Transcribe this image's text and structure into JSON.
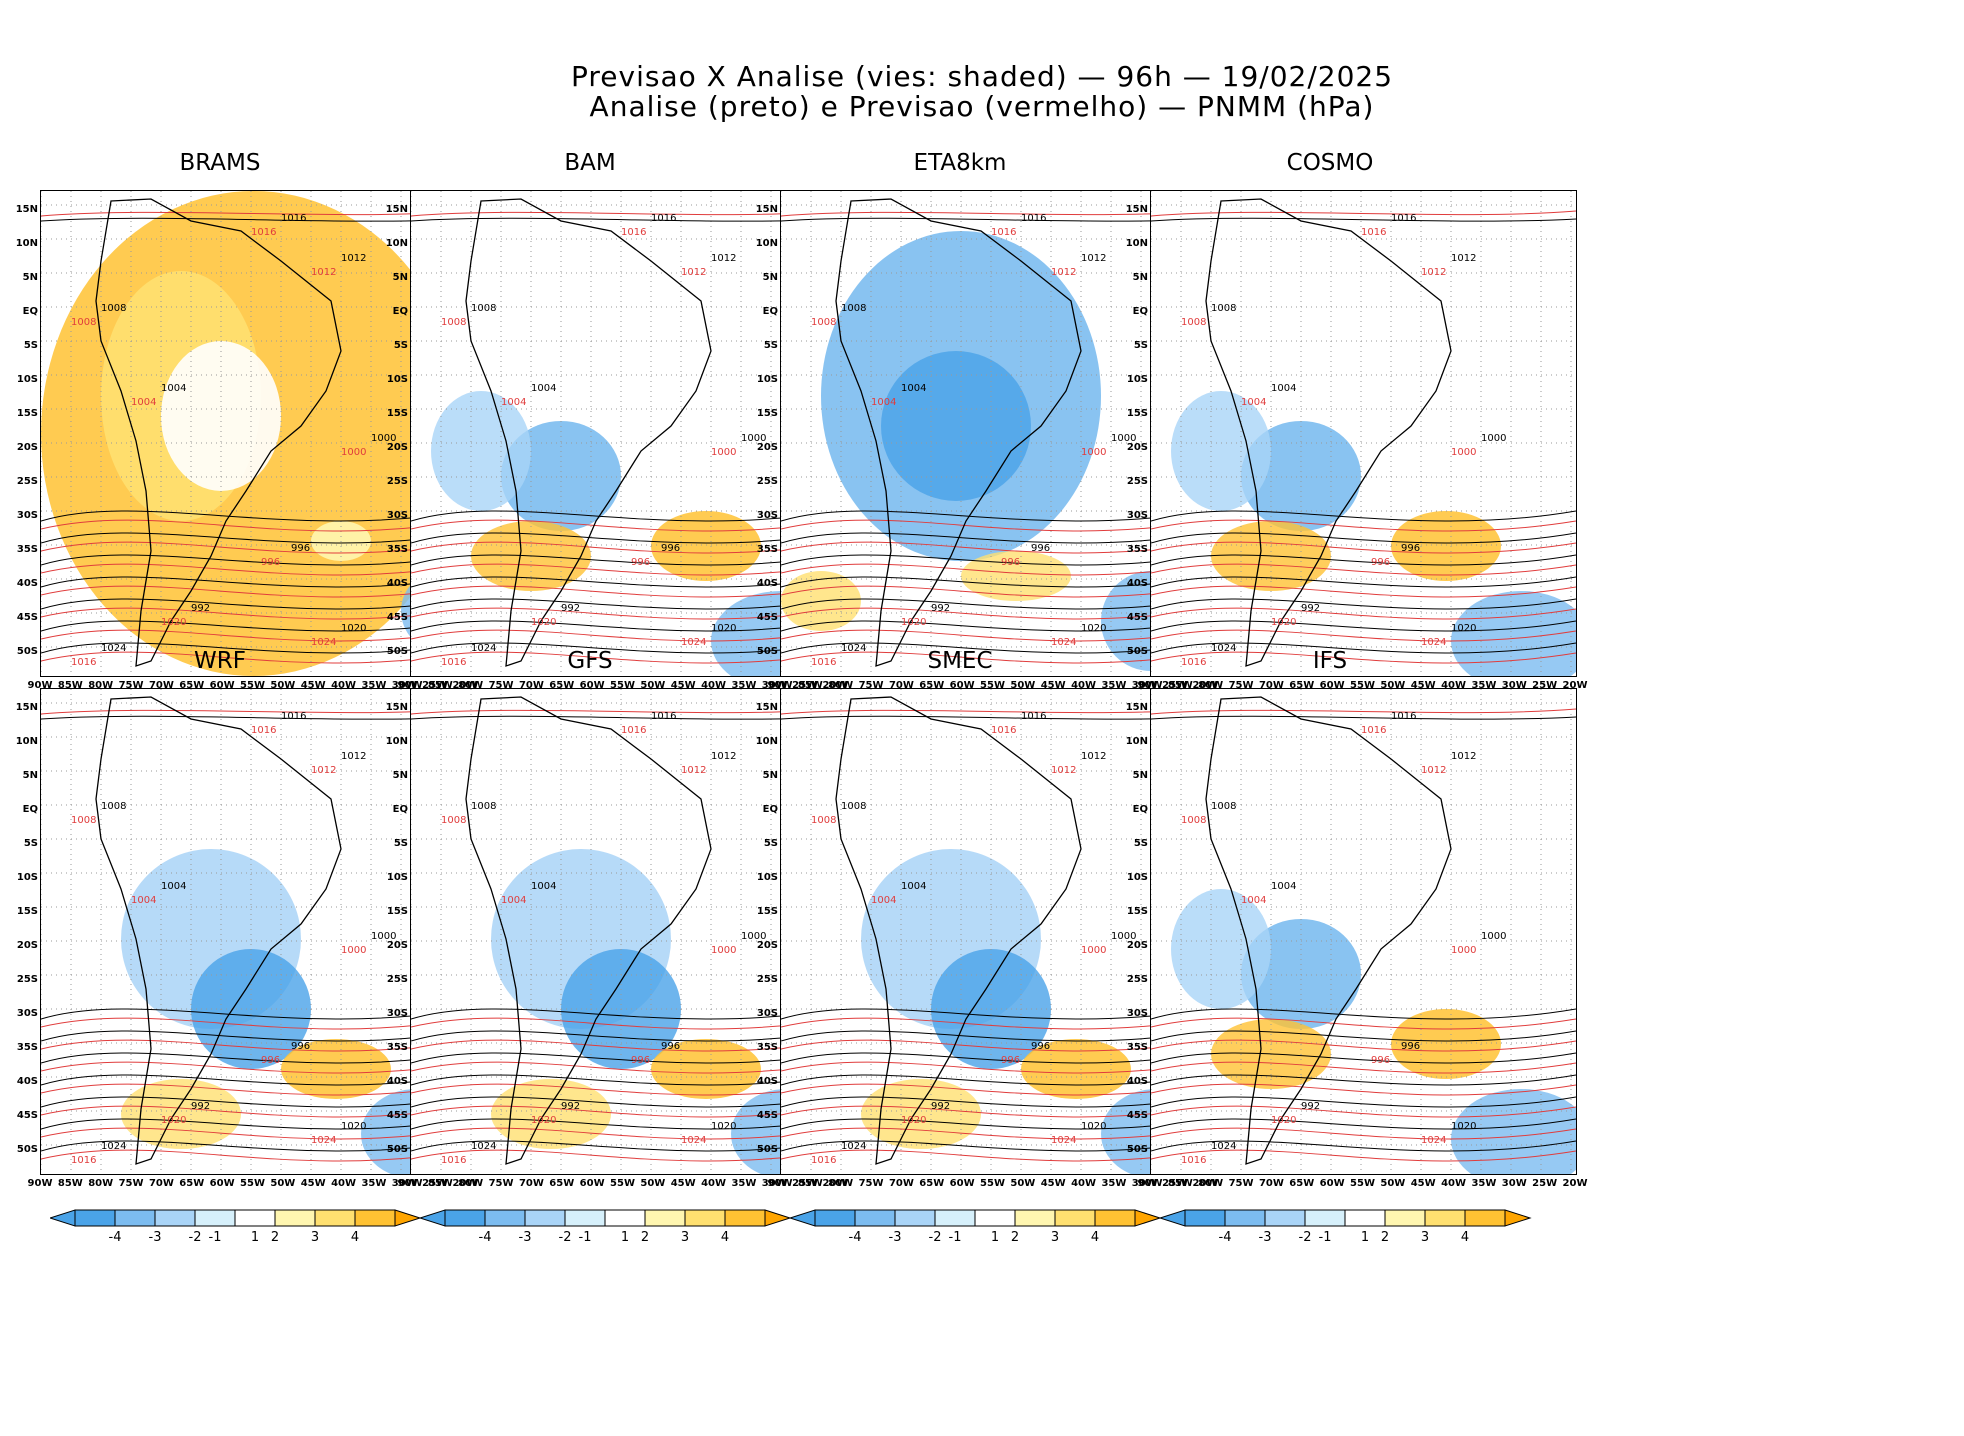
{
  "header": {
    "line1": "Previsao X Analise (vies: shaded) — 96h — 19/02/2025",
    "line2": "Analise (preto) e Previsao (vermelho) — PNMM (hPa)"
  },
  "panels": [
    {
      "title": "BRAMS",
      "bias": "warm"
    },
    {
      "title": "BAM",
      "bias": "mixed"
    },
    {
      "title": "ETA8km",
      "bias": "cold"
    },
    {
      "title": "COSMO",
      "bias": "mixed"
    },
    {
      "title": "WRF",
      "bias": "cool"
    },
    {
      "title": "GFS",
      "bias": "cool"
    },
    {
      "title": "SMEC",
      "bias": "cool"
    },
    {
      "title": "IFS",
      "bias": "mixed"
    }
  ],
  "lat_ticks": [
    "15N",
    "10N",
    "5N",
    "EQ",
    "5S",
    "10S",
    "15S",
    "20S",
    "25S",
    "30S",
    "35S",
    "40S",
    "45S",
    "50S"
  ],
  "lon_ticks": [
    "90W",
    "85W",
    "80W",
    "75W",
    "70W",
    "65W",
    "60W",
    "55W",
    "50W",
    "45W",
    "40W",
    "35W",
    "30W",
    "25W",
    "20W"
  ],
  "colorbar": {
    "labels": [
      "-4",
      "-3",
      "-2",
      "-1",
      "1",
      "2",
      "3",
      "4"
    ],
    "colors": [
      "#4aa3e8",
      "#7cbcf0",
      "#a9d4f7",
      "#d6f0fb",
      "#ffffff",
      "#fff6b0",
      "#ffe070",
      "#ffc233",
      "#ffa500"
    ]
  },
  "contour_labels": {
    "analysis": [
      "1016",
      "1012",
      "1008",
      "1004",
      "1000",
      "996",
      "992",
      "1020",
      "1024"
    ],
    "forecast": [
      "1016",
      "1012",
      "1008",
      "1004",
      "1000",
      "996",
      "1020",
      "1024"
    ]
  },
  "colors": {
    "analysis": "#000000",
    "forecast": "#e03c3c",
    "land_outline": "#000000"
  }
}
